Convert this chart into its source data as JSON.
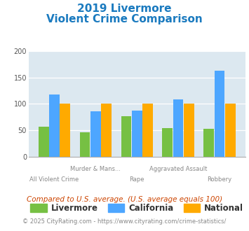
{
  "title_line1": "2019 Livermore",
  "title_line2": "Violent Crime Comparison",
  "categories": [
    "All Violent Crime",
    "Murder & Mans...",
    "Rape",
    "Aggravated Assault",
    "Robbery"
  ],
  "livermore": [
    57,
    46,
    77,
    55,
    53
  ],
  "california": [
    118,
    86,
    87,
    108,
    162
  ],
  "national": [
    100,
    100,
    100,
    100,
    100
  ],
  "colors": {
    "livermore": "#76c043",
    "california": "#4da6ff",
    "national": "#ffaa00"
  },
  "ylim": [
    0,
    200
  ],
  "yticks": [
    0,
    50,
    100,
    150,
    200
  ],
  "plot_bg": "#dce8f0",
  "title_color": "#1a7abf",
  "xlabel_color": "#888888",
  "footnote1": "Compared to U.S. average. (U.S. average equals 100)",
  "footnote2": "© 2025 CityRating.com - https://www.cityrating.com/crime-statistics/",
  "footnote1_color": "#cc4400",
  "footnote2_color": "#888888"
}
